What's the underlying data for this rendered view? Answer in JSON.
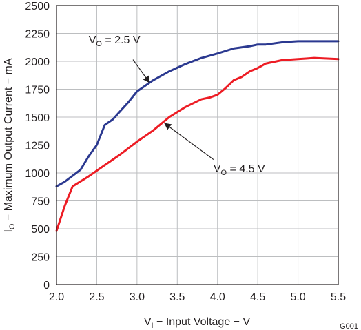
{
  "chart_data": {
    "type": "line",
    "title": "",
    "xlabel": {
      "main": "V",
      "sub": "I",
      "rest": " − Input Voltage − V"
    },
    "ylabel": {
      "main": "I",
      "sub": "O",
      "rest": " − Maximum Output Current − mA"
    },
    "xlim": [
      2.0,
      5.5
    ],
    "ylim": [
      0,
      2500
    ],
    "xticks": [
      2.0,
      2.5,
      3.0,
      3.5,
      4.0,
      4.5,
      5.0,
      5.5
    ],
    "xtick_labels": [
      "2.0",
      "2.5",
      "3.0",
      "3.5",
      "4.0",
      "4.5",
      "5.0",
      "5.5"
    ],
    "yticks": [
      0,
      250,
      500,
      750,
      1000,
      1250,
      1500,
      1750,
      2000,
      2250,
      2500
    ],
    "ytick_labels": [
      "0",
      "250",
      "500",
      "750",
      "1000",
      "1250",
      "1500",
      "1750",
      "2000",
      "2250",
      "2500"
    ],
    "grid": true,
    "figure_id": "G001",
    "series": [
      {
        "name": "VO = 2.5 V",
        "color": "#2b3990",
        "x": [
          2.0,
          2.1,
          2.2,
          2.3,
          2.4,
          2.5,
          2.6,
          2.7,
          2.8,
          2.9,
          3.0,
          3.2,
          3.4,
          3.6,
          3.8,
          4.0,
          4.2,
          4.4,
          4.5,
          4.6,
          4.8,
          4.9,
          5.0,
          5.2,
          5.5
        ],
        "y": [
          880,
          920,
          975,
          1030,
          1150,
          1250,
          1430,
          1480,
          1560,
          1640,
          1730,
          1830,
          1910,
          1975,
          2030,
          2070,
          2115,
          2135,
          2150,
          2150,
          2170,
          2175,
          2180,
          2180,
          2180
        ]
      },
      {
        "name": "VO = 4.5 V",
        "color": "#ed1c24",
        "x": [
          2.0,
          2.1,
          2.2,
          2.4,
          2.6,
          2.8,
          3.0,
          3.2,
          3.4,
          3.6,
          3.8,
          3.9,
          4.0,
          4.1,
          4.2,
          4.3,
          4.4,
          4.5,
          4.6,
          4.8,
          5.0,
          5.1,
          5.2,
          5.5
        ],
        "y": [
          480,
          700,
          880,
          970,
          1070,
          1170,
          1280,
          1380,
          1500,
          1590,
          1660,
          1675,
          1700,
          1760,
          1830,
          1860,
          1910,
          1940,
          1980,
          2010,
          2020,
          2025,
          2030,
          2020
        ]
      }
    ],
    "annotations": [
      {
        "main": "V",
        "sub": "O",
        "rest": " = 2.5 V",
        "label_x": 2.4,
        "label_y": 2160,
        "arrow_from": [
          2.95,
          2015
        ],
        "arrow_to": [
          3.15,
          1815
        ]
      },
      {
        "main": "V",
        "sub": "O",
        "rest": " = 4.5 V",
        "label_x": 3.95,
        "label_y": 1005,
        "arrow_from": [
          3.95,
          1120
        ],
        "arrow_to": [
          3.35,
          1440
        ]
      }
    ]
  }
}
